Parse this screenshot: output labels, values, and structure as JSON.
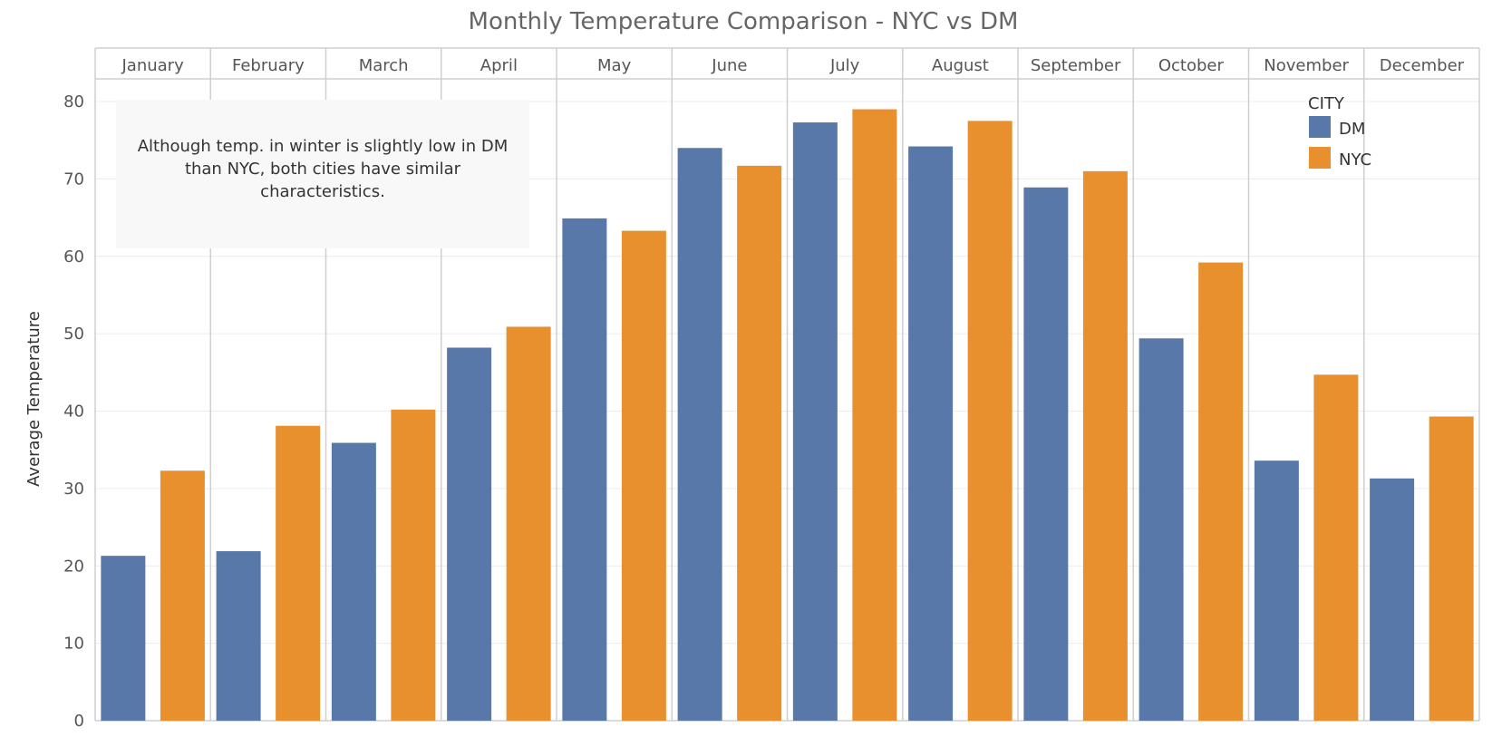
{
  "chart_data": {
    "type": "bar",
    "title": "Monthly Temperature Comparison - NYC vs DM",
    "xlabel": "",
    "ylabel": "Average Temperature",
    "ylim": [
      0,
      80
    ],
    "yticks": [
      "0",
      "10",
      "20",
      "30",
      "40",
      "50",
      "60",
      "70",
      "80"
    ],
    "categories": [
      "January",
      "February",
      "March",
      "April",
      "May",
      "June",
      "July",
      "August",
      "September",
      "October",
      "November",
      "December"
    ],
    "legend": {
      "title": "CITY",
      "position": "top-right"
    },
    "series": [
      {
        "name": "DM",
        "color": "#5778a8",
        "values": [
          21.3,
          21.9,
          35.9,
          48.2,
          64.9,
          74.0,
          77.3,
          74.2,
          68.9,
          49.4,
          33.6,
          31.3
        ]
      },
      {
        "name": "NYC",
        "color": "#e88f2e",
        "values": [
          32.3,
          38.1,
          40.2,
          50.9,
          63.3,
          71.7,
          79.0,
          77.5,
          71.0,
          59.2,
          44.7,
          39.3
        ]
      }
    ],
    "annotation": "Although temp. in winter is slightly low in DM than NYC, both cities have similar characteristics."
  }
}
